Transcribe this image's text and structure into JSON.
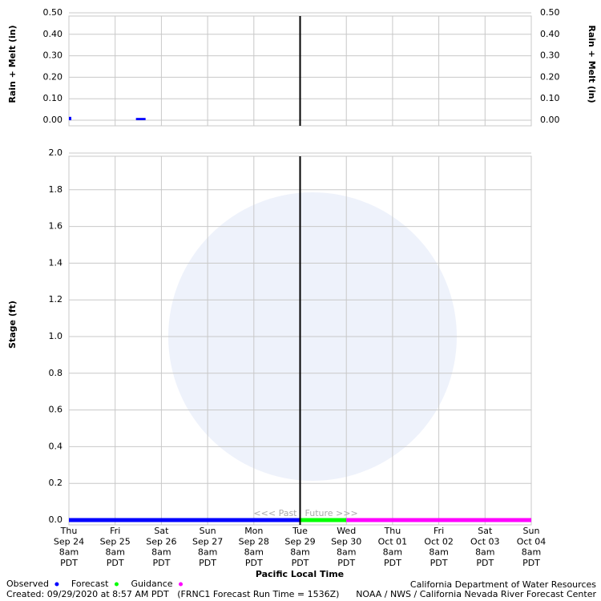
{
  "chart_data": [
    {
      "type": "bar",
      "y_label": "Rain + Melt (in)",
      "x": [
        0,
        1.45
      ],
      "values": [
        0.01,
        0.005
      ],
      "color": "#0000ff",
      "xlim": [
        0,
        10
      ],
      "ylim": [
        0,
        0.5
      ],
      "yticks": [
        {
          "value": 0,
          "label": "0.00"
        },
        {
          "value": 0.1,
          "label": "0.10"
        },
        {
          "value": 0.2,
          "label": "0.20"
        },
        {
          "value": 0.3,
          "label": "0.30"
        },
        {
          "value": 0.4,
          "label": "0.40"
        },
        {
          "value": 0.5,
          "label": "0.50"
        }
      ]
    },
    {
      "type": "line",
      "y_label": "Stage (ft)",
      "x_label": "Pacific Local Time",
      "categories": [
        [
          "Thu",
          "Sep 24",
          "8am",
          "PDT"
        ],
        [
          "Fri",
          "Sep 25",
          "8am",
          "PDT"
        ],
        [
          "Sat",
          "Sep 26",
          "8am",
          "PDT"
        ],
        [
          "Sun",
          "Sep 27",
          "8am",
          "PDT"
        ],
        [
          "Mon",
          "Sep 28",
          "8am",
          "PDT"
        ],
        [
          "Tue",
          "Sep 29",
          "8am",
          "PDT"
        ],
        [
          "Wed",
          "Sep 30",
          "8am",
          "PDT"
        ],
        [
          "Thu",
          "Oct 01",
          "8am",
          "PDT"
        ],
        [
          "Fri",
          "Oct 02",
          "8am",
          "PDT"
        ],
        [
          "Sat",
          "Oct 03",
          "8am",
          "PDT"
        ],
        [
          "Sun",
          "Oct 04",
          "8am",
          "PDT"
        ]
      ],
      "series": [
        {
          "name": "Observed",
          "color": "#0000ff",
          "values": [
            0,
            0,
            0,
            0,
            0,
            0,
            null,
            null,
            null,
            null,
            null
          ]
        },
        {
          "name": "Forecast",
          "color": "#00ff00",
          "values": [
            null,
            null,
            null,
            null,
            null,
            0,
            0,
            null,
            null,
            null,
            null
          ]
        },
        {
          "name": "Guidance",
          "color": "#ff00ff",
          "values": [
            null,
            null,
            null,
            null,
            null,
            null,
            0,
            0,
            0,
            0,
            0
          ]
        }
      ],
      "ylim": [
        0,
        2
      ],
      "yticks": [
        {
          "value": 0,
          "label": "0.0"
        },
        {
          "value": 0.2,
          "label": "0.2"
        },
        {
          "value": 0.4,
          "label": "0.4"
        },
        {
          "value": 0.6,
          "label": "0.6"
        },
        {
          "value": 0.8,
          "label": "0.8"
        },
        {
          "value": 1,
          "label": "1.0"
        },
        {
          "value": 1.2,
          "label": "1.2"
        },
        {
          "value": 1.4,
          "label": "1.4"
        },
        {
          "value": 1.6,
          "label": "1.6"
        },
        {
          "value": 1.8,
          "label": "1.8"
        },
        {
          "value": 2,
          "label": "2.0"
        }
      ],
      "now_index": 5,
      "past_label": "<<< Past",
      "future_label": "Future >>>",
      "grid": true,
      "footer": {
        "left": "Created: 09/29/2020 at 8:57 AM PDT   (FRNC1 Forecast Run Time = 1536Z)",
        "right_top": "California Department of Water Resources",
        "right_bottom": "NOAA / NWS / California Nevada River Forecast Center"
      }
    }
  ]
}
